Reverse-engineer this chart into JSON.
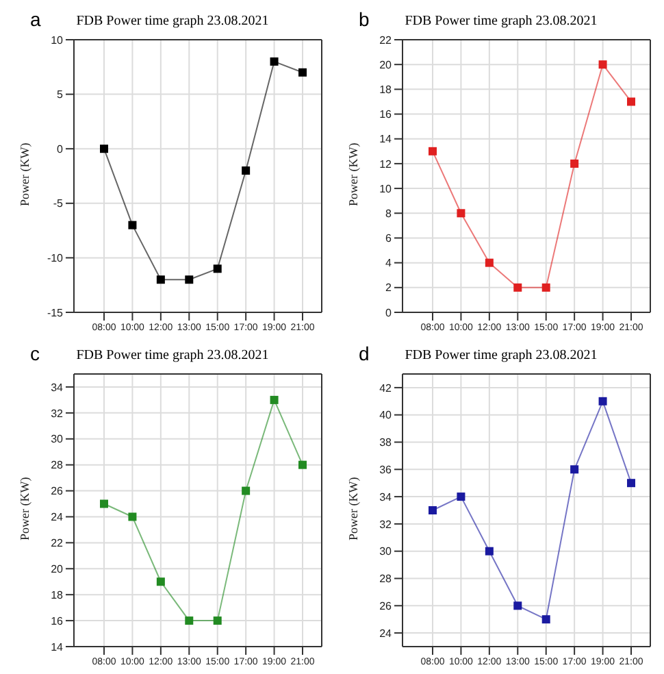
{
  "chart_data": [
    {
      "type": "line",
      "title": "FDB Power time graph 23.08.2021",
      "ylabel": "Power (KW)",
      "annotations": [
        "a"
      ],
      "categories": [
        "08:00",
        "10:00",
        "12:00",
        "13:00",
        "15:00",
        "17:00",
        "19:00",
        "21:00"
      ],
      "series": [
        {
          "color": "#000000",
          "values": [
            0,
            -7,
            -12,
            -12,
            -11,
            -2,
            8,
            7
          ]
        }
      ],
      "ylim": [
        -15,
        10
      ],
      "yticks": [
        -15,
        -10,
        -5,
        0,
        5,
        10
      ],
      "grid": true,
      "marker": "square"
    },
    {
      "type": "line",
      "title": "FDB Power time graph 23.08.2021",
      "ylabel": "Power (KW)",
      "annotations": [
        "b"
      ],
      "categories": [
        "08:00",
        "10:00",
        "12:00",
        "13:00",
        "15:00",
        "17:00",
        "19:00",
        "21:00"
      ],
      "series": [
        {
          "color": "#e02020",
          "values": [
            13,
            8,
            4,
            2,
            2,
            12,
            20,
            17
          ]
        }
      ],
      "ylim": [
        0,
        22
      ],
      "yticks": [
        0,
        2,
        4,
        6,
        8,
        10,
        12,
        14,
        16,
        18,
        20,
        22
      ],
      "grid": true,
      "marker": "square"
    },
    {
      "type": "line",
      "title": "FDB Power time graph 23.08.2021",
      "ylabel": "Power (KW)",
      "annotations": [
        "c"
      ],
      "categories": [
        "08:00",
        "10:00",
        "12:00",
        "13:00",
        "15:00",
        "17:00",
        "19:00",
        "21:00"
      ],
      "series": [
        {
          "color": "#228b22",
          "values": [
            25,
            24,
            19,
            16,
            16,
            26,
            33,
            28
          ]
        }
      ],
      "ylim": [
        14,
        35
      ],
      "yticks": [
        14,
        16,
        18,
        20,
        22,
        24,
        26,
        28,
        30,
        32,
        34
      ],
      "grid": true,
      "marker": "square"
    },
    {
      "type": "line",
      "title": "FDB Power time graph 23.08.2021",
      "ylabel": "Power (KW)",
      "annotations": [
        "d"
      ],
      "categories": [
        "08:00",
        "10:00",
        "12:00",
        "13:00",
        "15:00",
        "17:00",
        "19:00",
        "21:00"
      ],
      "series": [
        {
          "color": "#1a1aa0",
          "values": [
            33,
            34,
            30,
            26,
            25,
            36,
            41,
            35
          ]
        }
      ],
      "ylim": [
        23,
        43
      ],
      "yticks": [
        24,
        26,
        28,
        30,
        32,
        34,
        36,
        38,
        40,
        42
      ],
      "grid": true,
      "marker": "square"
    }
  ]
}
